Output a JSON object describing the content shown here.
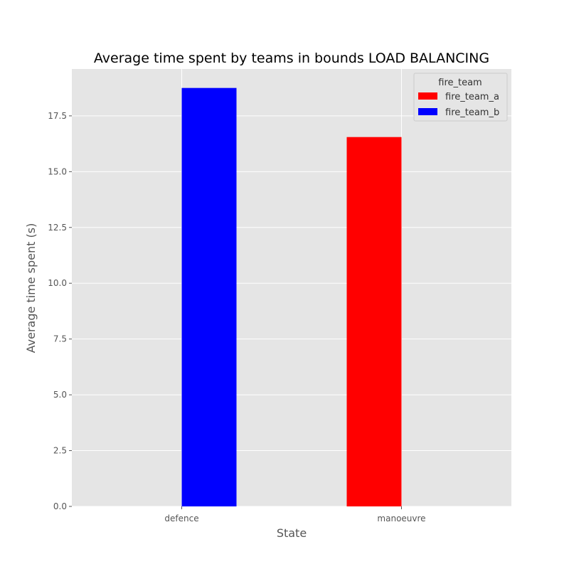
{
  "chart_data": {
    "type": "bar",
    "title": "Average time spent by teams in bounds LOAD BALANCING",
    "xlabel": "State",
    "ylabel": "Average time spent (s)",
    "categories": [
      "defence",
      "manoeuvre"
    ],
    "series": [
      {
        "name": "fire_team_a",
        "color": "#ff0000",
        "values": [
          0,
          16.55
        ]
      },
      {
        "name": "fire_team_b",
        "color": "#0000ff",
        "values": [
          18.75,
          0
        ]
      }
    ],
    "ylim": [
      0,
      19.6
    ],
    "yticks": [
      0.0,
      2.5,
      5.0,
      7.5,
      10.0,
      12.5,
      15.0,
      17.5
    ],
    "ytick_labels": [
      "0.0",
      "2.5",
      "5.0",
      "7.5",
      "10.0",
      "12.5",
      "15.0",
      "17.5"
    ],
    "legend": {
      "title": "fire_team",
      "placement": "top-right"
    },
    "grid": true,
    "background": "#e5e5e5"
  }
}
